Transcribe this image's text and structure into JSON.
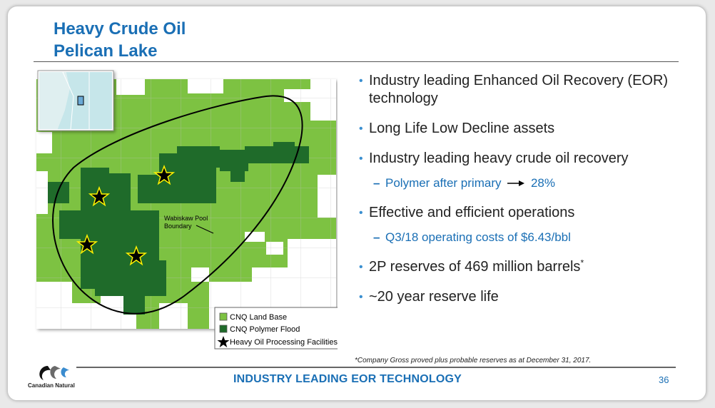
{
  "title": {
    "line1": "Heavy Crude Oil",
    "line2": "Pelican Lake"
  },
  "map": {
    "pool_label_line1": "Wabiskaw Pool",
    "pool_label_line2": "Boundary",
    "legend": [
      {
        "label": "CNQ Land Base",
        "color": "#7dc242"
      },
      {
        "label": "CNQ Polymer Flood",
        "color": "#1f6b2a"
      },
      {
        "label": "Heavy Oil Processing Facilities",
        "icon": "star-icon"
      }
    ]
  },
  "bullets": {
    "b1": "Industry leading Enhanced Oil Recovery (EOR) technology",
    "b2": "Long Life Low Decline assets",
    "b3": "Industry leading heavy crude oil recovery",
    "b3_sub_before": "Polymer after primary",
    "b3_sub_after": "28%",
    "b4": "Effective and efficient operations",
    "b4_sub": "Q3/18 operating costs of $6.43/bbl",
    "b5": "2P reserves of 469 million barrels",
    "b5_sup": "*",
    "b6": "~20 year reserve life"
  },
  "footnote": "*Company Gross proved plus probable reserves as at December 31, 2017.",
  "footer": {
    "text": "INDUSTRY LEADING EOR TECHNOLOGY",
    "page_number": "36",
    "logo_text": "Canadian Natural"
  },
  "colors": {
    "title_blue": "#1a6fb5",
    "land_base_green": "#7dc242",
    "polymer_flood_green": "#1f6b2a"
  }
}
